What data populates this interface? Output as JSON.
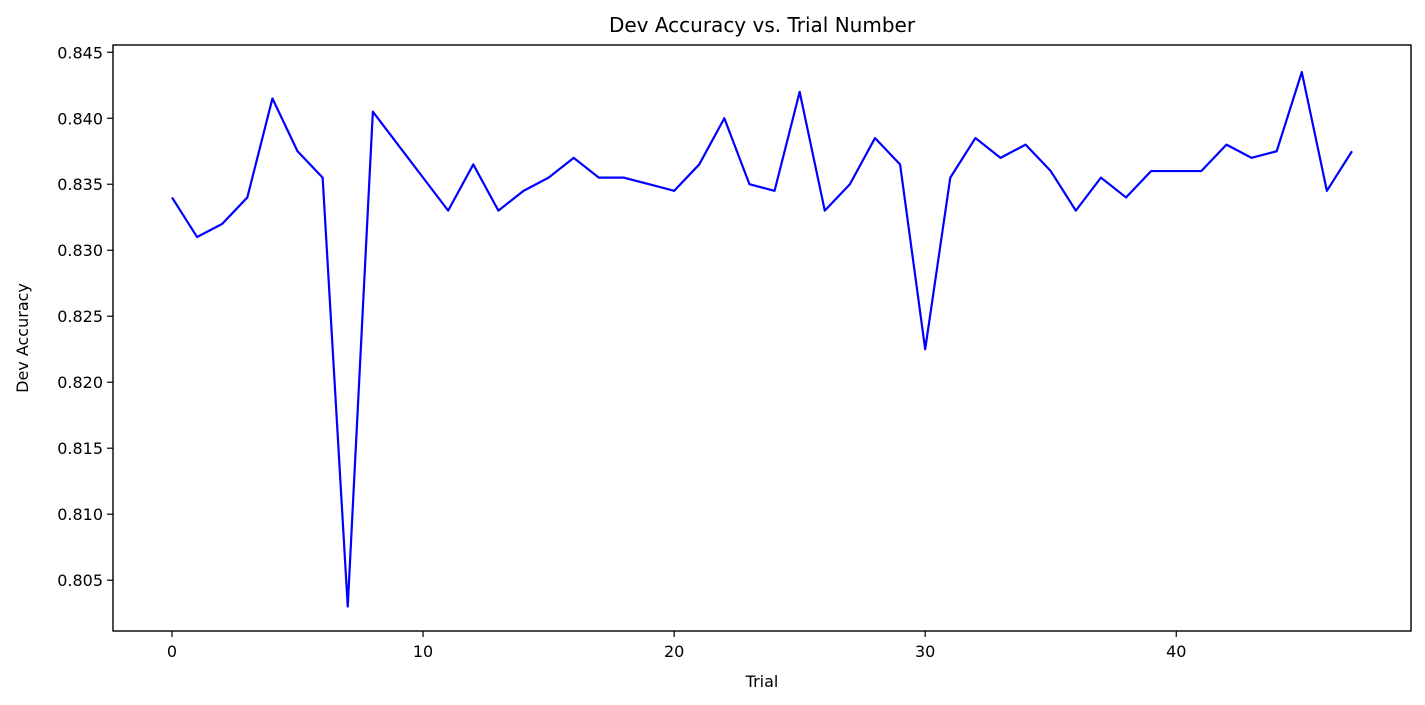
{
  "chart_data": {
    "type": "line",
    "title": "Dev Accuracy vs. Trial Number",
    "xlabel": "Trial",
    "ylabel": "Dev Accuracy",
    "xlim": [
      -2.35,
      49.35
    ],
    "ylim": [
      0.80115,
      0.84555
    ],
    "xticks": [
      0,
      10,
      20,
      30,
      40
    ],
    "yticks": [
      0.805,
      0.81,
      0.815,
      0.82,
      0.825,
      0.83,
      0.835,
      0.84,
      0.845
    ],
    "xtick_labels": [
      "0",
      "10",
      "20",
      "30",
      "40"
    ],
    "ytick_labels": [
      "0.805",
      "0.810",
      "0.815",
      "0.820",
      "0.825",
      "0.830",
      "0.835",
      "0.840",
      "0.845"
    ],
    "grid": false,
    "legend": false,
    "series": [
      {
        "color": "#0000ff",
        "x": [
          0,
          1,
          2,
          3,
          4,
          5,
          6,
          7,
          8,
          9,
          10,
          11,
          12,
          13,
          14,
          15,
          16,
          17,
          18,
          19,
          20,
          21,
          22,
          23,
          24,
          25,
          26,
          27,
          28,
          29,
          30,
          31,
          32,
          33,
          34,
          35,
          36,
          37,
          38,
          39,
          40,
          41,
          42,
          43,
          44,
          45,
          46,
          47
        ],
        "y": [
          0.834,
          0.831,
          0.832,
          0.834,
          0.8415,
          0.8375,
          0.8355,
          0.803,
          0.8405,
          0.838,
          0.8355,
          0.833,
          0.8365,
          0.833,
          0.8345,
          0.8355,
          0.837,
          0.8355,
          0.8355,
          0.835,
          0.8345,
          0.8365,
          0.84,
          0.835,
          0.8345,
          0.842,
          0.833,
          0.835,
          0.8385,
          0.8365,
          0.8225,
          0.8355,
          0.8385,
          0.837,
          0.838,
          0.836,
          0.833,
          0.8355,
          0.834,
          0.836,
          0.836,
          0.836,
          0.838,
          0.837,
          0.8375,
          0.8435,
          0.8345,
          0.8375
        ]
      }
    ]
  }
}
